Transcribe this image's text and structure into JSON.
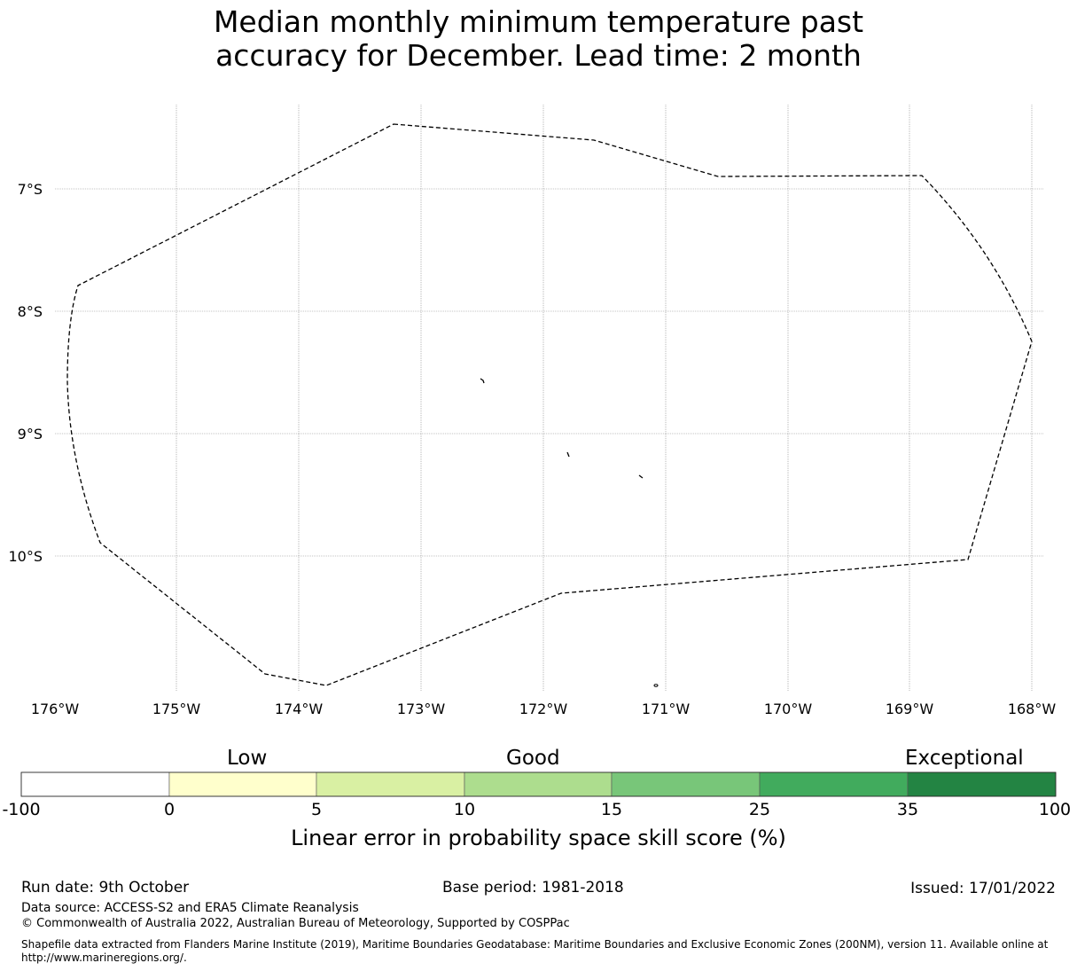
{
  "title": {
    "line1": "Median monthly minimum temperature past",
    "line2": "accuracy for December. Lead time: 2 month"
  },
  "map": {
    "lat_labels": [
      "7°S",
      "8°S",
      "9°S",
      "10°S"
    ],
    "lon_labels": [
      "176°W",
      "175°W",
      "174°W",
      "173°W",
      "172°W",
      "171°W",
      "170°W",
      "169°W",
      "168°W"
    ],
    "boundary_style": "dashed"
  },
  "colorbar": {
    "categories": [
      "Low",
      "Good",
      "Exceptional"
    ],
    "ticks": [
      "-100",
      "0",
      "5",
      "10",
      "15",
      "25",
      "35",
      "100"
    ],
    "colors": [
      "#ffffff",
      "#ffffcc",
      "#d9f0a3",
      "#addd8e",
      "#78c679",
      "#41ab5d",
      "#238443"
    ],
    "label": "Linear error in probability space skill score (%)"
  },
  "footer": {
    "run_date": "Run date: 9th October",
    "base_period": "Base period: 1981-2018",
    "issued": "Issued: 17/01/2022",
    "data_source": "Data source: ACCESS-S2 and ERA5 Climate Reanalysis",
    "copyright": "© Commonwealth of Australia 2022, Australian Bureau of Meteorology, Supported by COSPPac",
    "shapefile_line1": "Shapefile data extracted from Flanders Marine Institute (2019), Maritime Boundaries Geodatabase: Maritime Boundaries and Exclusive Economic Zones (200NM), version 11. Available online at",
    "shapefile_line2": "http://www.marineregions.org/."
  }
}
